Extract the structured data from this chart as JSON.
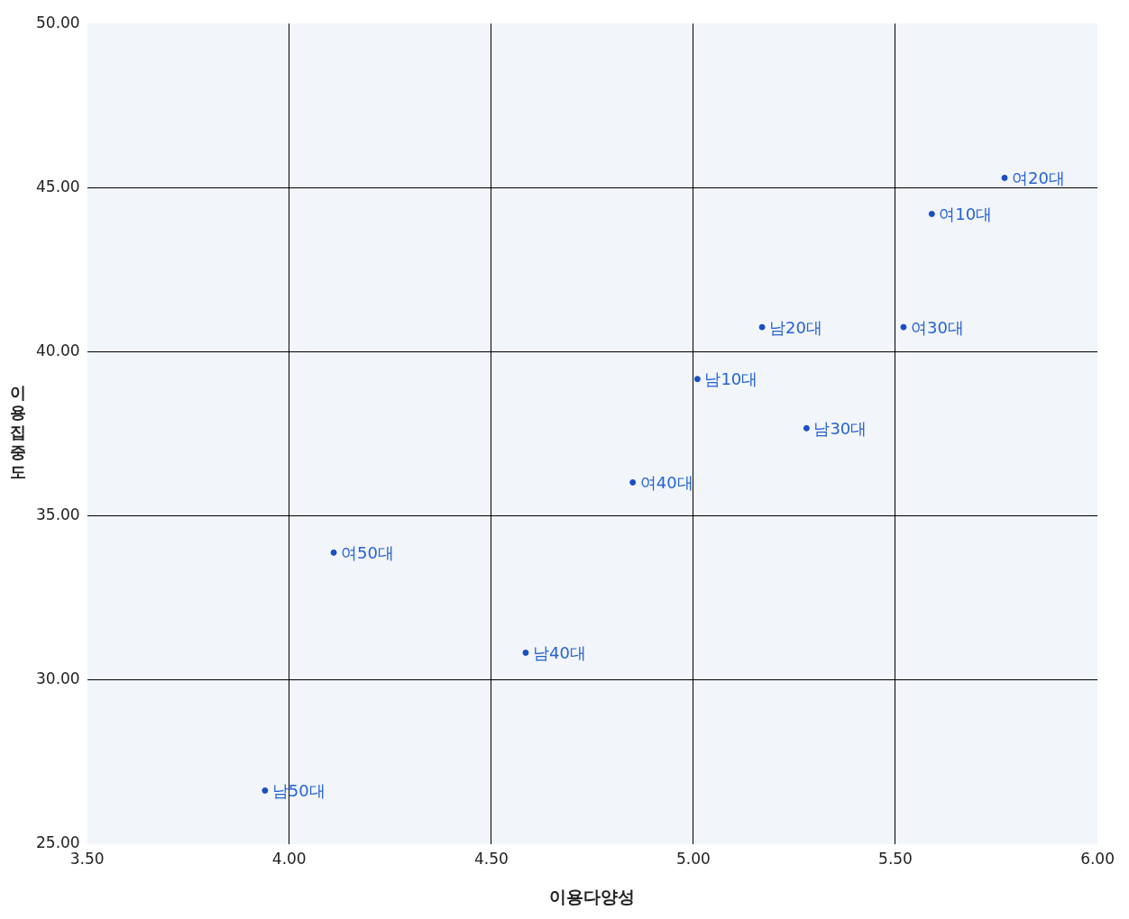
{
  "chart_data": {
    "type": "scatter",
    "xlabel": "이용다양성",
    "ylabel": "이용집중도",
    "x": [
      5.77,
      5.59,
      5.17,
      5.52,
      5.01,
      5.28,
      4.85,
      4.11,
      4.585,
      3.94
    ],
    "series": [
      {
        "color": "#1a4fc4",
        "values": [
          45.3,
          44.2,
          40.75,
          40.75,
          39.17,
          37.67,
          36.02,
          33.88,
          30.83,
          26.63
        ]
      }
    ],
    "annotations": [
      {
        "text": "여20대",
        "x": 5.77,
        "y": 45.3
      },
      {
        "text": "여10대",
        "x": 5.59,
        "y": 44.2
      },
      {
        "text": "남20대",
        "x": 5.17,
        "y": 40.75
      },
      {
        "text": "여30대",
        "x": 5.52,
        "y": 40.75
      },
      {
        "text": "남10대",
        "x": 5.01,
        "y": 39.17
      },
      {
        "text": "남30대",
        "x": 5.28,
        "y": 37.67
      },
      {
        "text": "여40대",
        "x": 4.85,
        "y": 36.02
      },
      {
        "text": "여50대",
        "x": 4.11,
        "y": 33.88
      },
      {
        "text": "남40대",
        "x": 4.585,
        "y": 30.83
      },
      {
        "text": "남50대",
        "x": 3.94,
        "y": 26.63
      }
    ],
    "xlim": [
      3.5,
      6.0
    ],
    "xticks": [
      {
        "value": 3.5,
        "label": "3.50"
      },
      {
        "value": 4,
        "label": "4.00"
      },
      {
        "value": 4.5,
        "label": "4.50"
      },
      {
        "value": 5,
        "label": "5.00"
      },
      {
        "value": 5.5,
        "label": "5.50"
      },
      {
        "value": 6,
        "label": "6.00"
      }
    ],
    "ylim": [
      25,
      50
    ],
    "yticks": [
      {
        "value": 25,
        "label": "25.00"
      },
      {
        "value": 30,
        "label": "30.00"
      },
      {
        "value": 35,
        "label": "35.00"
      },
      {
        "value": 40,
        "label": "40.00"
      },
      {
        "value": 45,
        "label": "45.00"
      },
      {
        "value": 50,
        "label": "50.00"
      }
    ],
    "grid": true,
    "marker": "circle",
    "legend": false
  }
}
